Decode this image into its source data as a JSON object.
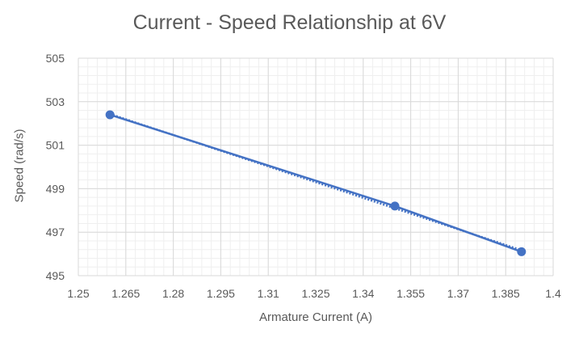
{
  "chart_data": {
    "type": "scatter",
    "title": "Current - Speed Relationship at 6V",
    "xlabel": "Armature Current (A)",
    "ylabel": "Speed (rad/s)",
    "xlim": [
      1.25,
      1.4
    ],
    "ylim": [
      495,
      505
    ],
    "xticks": [
      1.25,
      1.265,
      1.28,
      1.295,
      1.31,
      1.325,
      1.34,
      1.355,
      1.37,
      1.385,
      1.4
    ],
    "xtick_labels": [
      "1.25",
      "1.265",
      "1.28",
      "1.295",
      "1.31",
      "1.325",
      "1.34",
      "1.355",
      "1.37",
      "1.385",
      "1.4"
    ],
    "yticks": [
      495,
      497,
      499,
      501,
      503,
      505
    ],
    "ytick_labels": [
      "495",
      "497",
      "499",
      "501",
      "503",
      "505"
    ],
    "grid": true,
    "legend": "none",
    "colors": {
      "series": "#4472C4",
      "grid_major": "#d9d9d9",
      "grid_minor": "#efefef",
      "text": "#595959"
    },
    "series": [
      {
        "points": [
          {
            "x": 1.26,
            "y": 502.4
          },
          {
            "x": 1.35,
            "y": 498.2
          },
          {
            "x": 1.39,
            "y": 496.1
          }
        ],
        "marker": "circle",
        "line": "solid",
        "trendline": {
          "type": "linear",
          "style": "dotted"
        }
      }
    ]
  }
}
